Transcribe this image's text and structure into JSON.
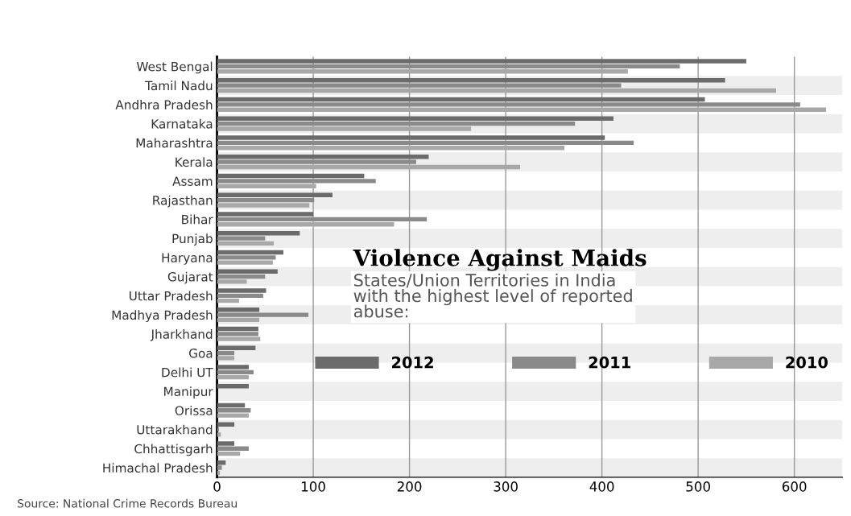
{
  "chart_data": {
    "type": "bar",
    "orientation": "horizontal",
    "title": "Violence Against Maids",
    "subtitle": "States/Union Territories in India\nwith the highest level of reported\nabuse:",
    "categories": [
      "West Bengal",
      "Tamil Nadu",
      "Andhra Pradesh",
      "Karnataka",
      "Maharashtra",
      "Kerala",
      "Assam",
      "Rajasthan",
      "Bihar",
      "Punjab",
      "Haryana",
      "Gujarat",
      "Uttar Pradesh",
      "Madhya Pradesh",
      "Jharkhand",
      "Goa",
      "Delhi UT",
      "Manipur",
      "Orissa",
      "Uttarakhand",
      "Chhattisgarh",
      "Himachal Pradesh"
    ],
    "series": [
      {
        "name": "2012",
        "color": "#6b6b6b",
        "values": [
          550,
          528,
          507,
          412,
          403,
          220,
          153,
          120,
          100,
          86,
          69,
          63,
          51,
          44,
          43,
          40,
          33,
          33,
          29,
          18,
          18,
          9
        ]
      },
      {
        "name": "2011",
        "color": "#8a8a8a",
        "values": [
          481,
          420,
          606,
          372,
          433,
          207,
          165,
          101,
          218,
          50,
          61,
          50,
          48,
          95,
          43,
          18,
          38,
          0,
          35,
          2,
          33,
          5
        ]
      },
      {
        "name": "2010",
        "color": "#a8a8a8",
        "values": [
          427,
          581,
          633,
          264,
          361,
          315,
          103,
          96,
          184,
          59,
          58,
          31,
          23,
          44,
          45,
          18,
          33,
          0,
          33,
          4,
          24,
          3
        ]
      }
    ],
    "xlim": [
      0,
      650
    ],
    "xticks": [
      0,
      100,
      200,
      300,
      400,
      500,
      600
    ],
    "grid": "x",
    "legend": "center right",
    "annotations": [
      "Source: National Crime Records Bureau"
    ]
  }
}
